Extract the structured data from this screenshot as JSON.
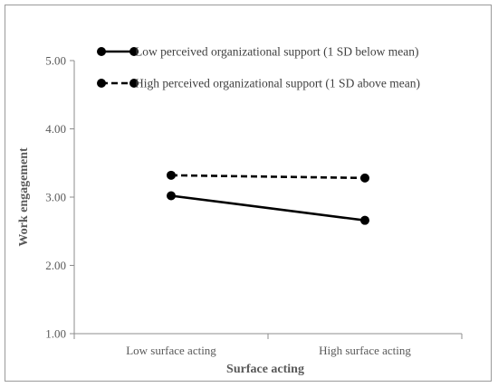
{
  "chart_data": {
    "type": "line",
    "title": "",
    "xlabel": "Surface acting",
    "ylabel": "Work engagement",
    "categories": [
      "Low surface acting",
      "High surface acting"
    ],
    "ylim": [
      1.0,
      5.0
    ],
    "yticks": [
      "1.00",
      "2.00",
      "3.00",
      "4.00",
      "5.00"
    ],
    "grid": false,
    "legend_position": "top-left",
    "series": [
      {
        "name": "Low perceived organizational support (1 SD below mean)",
        "values": [
          3.02,
          2.66
        ],
        "line_style": "solid",
        "color": "#000000"
      },
      {
        "name": "High perceived organizational support (1 SD above mean)",
        "values": [
          3.32,
          3.28
        ],
        "line_style": "dashed",
        "color": "#000000"
      }
    ]
  }
}
